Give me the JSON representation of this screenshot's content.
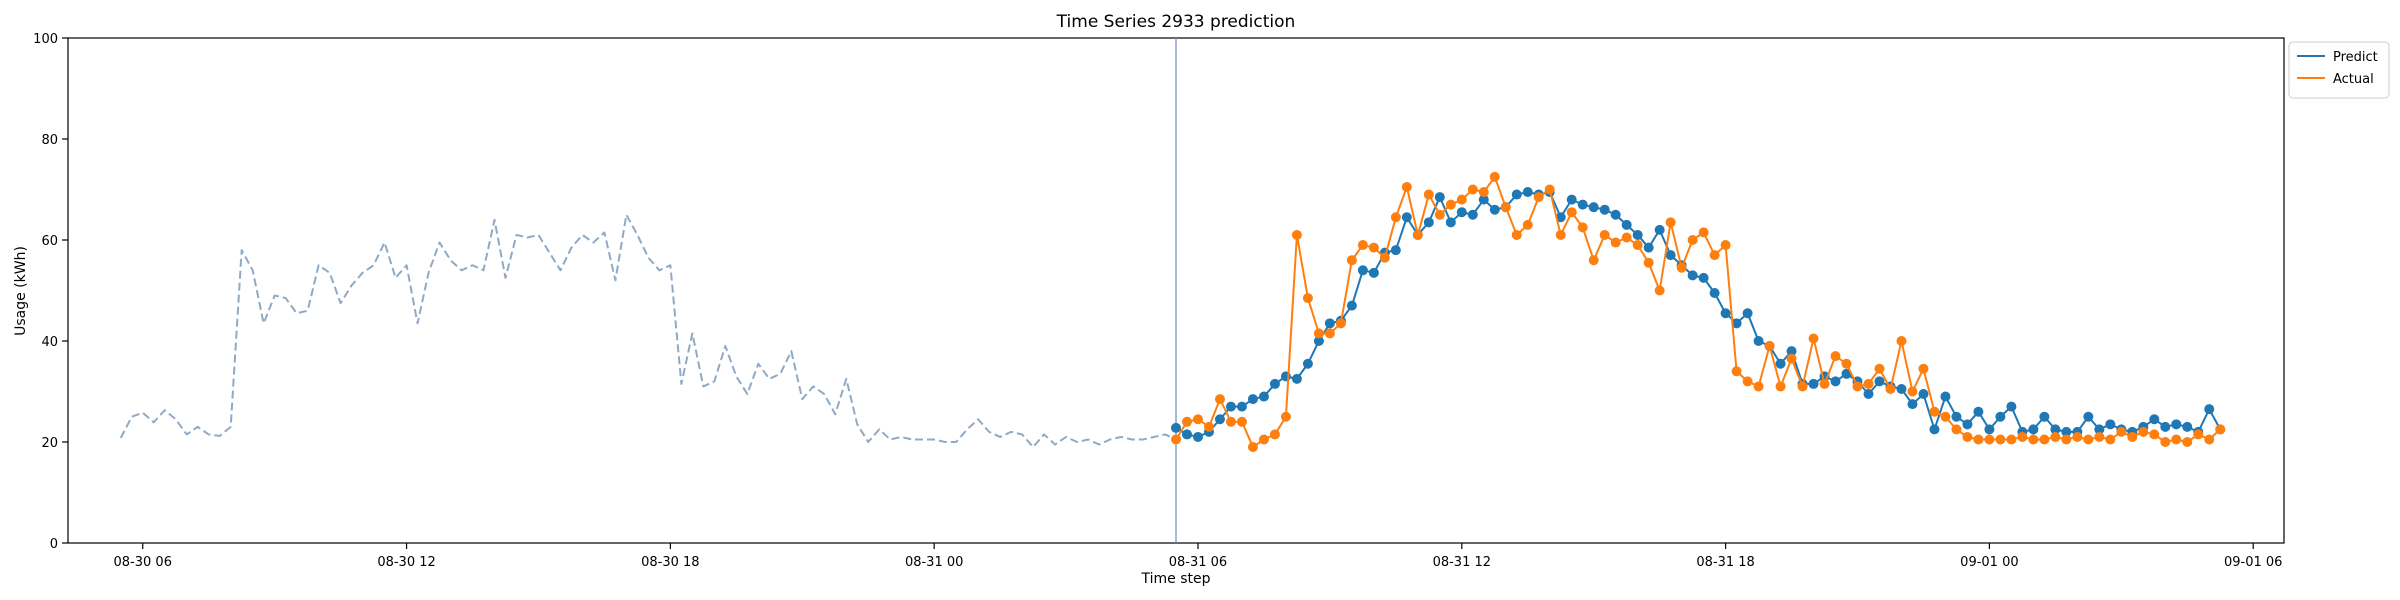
{
  "chart_data": {
    "type": "line",
    "title": "Time Series 2933 prediction",
    "xlabel": "Time step",
    "ylabel": "Usage (kWh)",
    "ylim": [
      0,
      100
    ],
    "yticks": [
      0,
      20,
      40,
      60,
      80,
      100
    ],
    "xlim": [
      "2008-08-30 04:18",
      "2008-09-01 06:42"
    ],
    "xticks": [
      "2008-08-30 06:00",
      "2008-08-30 12:00",
      "2008-08-30 18:00",
      "2008-08-31 00:00",
      "2008-08-31 06:00",
      "2008-08-31 12:00",
      "2008-08-31 18:00",
      "2008-09-01 00:00",
      "2008-09-01 06:00"
    ],
    "xtick_labels": [
      "08-30 06",
      "08-30 12",
      "08-30 18",
      "08-31 00",
      "08-31 06",
      "08-31 12",
      "08-31 18",
      "09-01 00",
      "09-01 06"
    ],
    "vline": "2008-08-31 05:30",
    "legend_position": "upper-right-outside",
    "grid": false,
    "series": [
      {
        "name": "",
        "style": "dashed",
        "color": "#8fa9c6",
        "start": "2008-08-30 05:30",
        "step_minutes": 15,
        "values": [
          20.8,
          25.0,
          25.8,
          23.9,
          26.3,
          24.5,
          21.5,
          23.0,
          21.5,
          21.2,
          23.0,
          58.0,
          54.0,
          43.5,
          49.0,
          48.5,
          45.5,
          46.0,
          55.0,
          53.5,
          47.5,
          51.0,
          53.5,
          55.0,
          59.5,
          52.5,
          55.0,
          43.5,
          53.5,
          59.5,
          56.0,
          54.0,
          55.0,
          54.0,
          64.0,
          52.5,
          61.0,
          60.5,
          61.0,
          57.5,
          54.0,
          58.5,
          61.0,
          59.5,
          61.5,
          52.0,
          65.0,
          61.0,
          56.5,
          54.0,
          55.0,
          31.5,
          41.5,
          31.0,
          32.0,
          39.0,
          33.0,
          29.5,
          35.5,
          32.5,
          33.5,
          38.0,
          28.5,
          31.0,
          29.5,
          25.5,
          32.5,
          23.5,
          20.0,
          22.5,
          20.5,
          21.0,
          20.5,
          20.5,
          20.5,
          20.0,
          20.0,
          22.5,
          24.5,
          22.0,
          21.0,
          22.0,
          21.5,
          19.0,
          21.5,
          19.5,
          21.0,
          20.0,
          20.5,
          19.5,
          20.5,
          21.0,
          20.5,
          20.5,
          21.0,
          21.5,
          20.5,
          21.5,
          20.5
        ]
      },
      {
        "name": "Predict",
        "style": "solid-markers",
        "color": "#1f77b4",
        "start": "2008-08-31 05:30",
        "step_minutes": 15,
        "values": [
          22.8,
          21.5,
          21.0,
          22.0,
          24.5,
          27.0,
          27.0,
          28.5,
          29.0,
          31.5,
          33.0,
          32.5,
          35.5,
          40.0,
          43.5,
          44.0,
          47.0,
          54.0,
          53.5,
          57.5,
          58.0,
          64.5,
          61.0,
          63.5,
          68.5,
          63.5,
          65.5,
          65.0,
          68.0,
          66.0,
          66.5,
          69.0,
          69.5,
          69.0,
          69.5,
          64.5,
          68.0,
          67.0,
          66.5,
          66.0,
          65.0,
          63.0,
          61.0,
          58.5,
          62.0,
          57.0,
          55.0,
          53.0,
          52.5,
          49.5,
          45.5,
          43.5,
          45.5,
          40.0,
          39.0,
          35.5,
          38.0,
          31.5,
          31.5,
          33.0,
          32.0,
          33.5,
          32.0,
          29.5,
          32.0,
          31.0,
          30.5,
          27.5,
          29.5,
          22.5,
          29.0,
          25.0,
          23.5,
          26.0,
          22.5,
          25.0,
          27.0,
          22.0,
          22.5,
          25.0,
          22.5,
          22.0,
          22.0,
          25.0,
          22.5,
          23.5,
          22.5,
          22.0,
          23.0,
          24.5,
          23.0,
          23.5,
          23.0,
          22.0,
          26.5,
          22.5
        ]
      },
      {
        "name": "Actual",
        "style": "solid-markers",
        "color": "#ff7f0e",
        "start": "2008-08-31 05:30",
        "step_minutes": 15,
        "values": [
          20.5,
          24.0,
          24.5,
          23.0,
          28.5,
          24.0,
          24.0,
          19.0,
          20.5,
          21.5,
          25.0,
          61.0,
          48.5,
          41.5,
          41.5,
          43.5,
          56.0,
          59.0,
          58.5,
          56.5,
          64.5,
          70.5,
          61.0,
          69.0,
          65.0,
          67.0,
          68.0,
          70.0,
          69.5,
          72.5,
          66.5,
          61.0,
          63.0,
          68.5,
          70.0,
          61.0,
          65.5,
          62.5,
          56.0,
          61.0,
          59.5,
          60.5,
          59.0,
          55.5,
          50.0,
          63.5,
          54.5,
          60.0,
          61.5,
          57.0,
          59.0,
          34.0,
          32.0,
          31.0,
          39.0,
          31.0,
          36.5,
          31.0,
          40.5,
          31.5,
          37.0,
          35.5,
          31.0,
          31.5,
          34.5,
          30.5,
          40.0,
          30.0,
          34.5,
          26.0,
          25.0,
          22.5,
          21.0,
          20.5,
          20.5,
          20.5,
          20.5,
          21.0,
          20.5,
          20.5,
          21.0,
          20.5,
          21.0,
          20.5,
          21.0,
          20.5,
          22.0,
          21.0,
          22.0,
          21.5,
          20.0,
          20.5,
          20.0,
          21.5,
          20.5,
          22.5
        ]
      }
    ]
  }
}
